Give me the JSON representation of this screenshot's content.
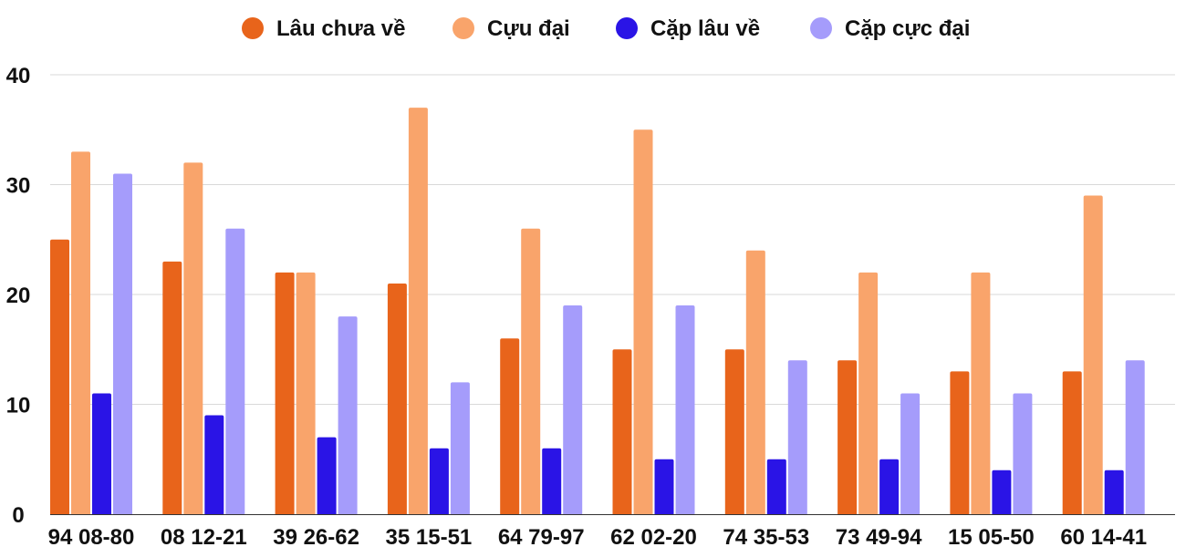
{
  "chart_data": {
    "type": "bar",
    "categories": [
      "94 08-80",
      "08 12-21",
      "39 26-62",
      "35 15-51",
      "64 79-97",
      "62 02-20",
      "74 35-53",
      "73 49-94",
      "15 05-50",
      "60 14-41"
    ],
    "series": [
      {
        "name": "Lâu chưa về",
        "color": "#e8641b",
        "values": [
          25,
          23,
          22,
          21,
          16,
          15,
          15,
          14,
          13,
          13
        ]
      },
      {
        "name": "Cựu đại",
        "color": "#f9a46b",
        "values": [
          33,
          32,
          22,
          37,
          26,
          35,
          24,
          22,
          22,
          29
        ]
      },
      {
        "name": "Cặp lâu về",
        "color": "#2a14e6",
        "values": [
          11,
          9,
          7,
          6,
          6,
          5,
          5,
          5,
          4,
          4
        ]
      },
      {
        "name": "Cặp cực đại",
        "color": "#a59cfb",
        "values": [
          31,
          26,
          18,
          12,
          19,
          19,
          14,
          11,
          11,
          14
        ]
      }
    ],
    "title": "",
    "xlabel": "",
    "ylabel": "",
    "ylim": [
      0,
      40
    ],
    "yticks": [
      0,
      10,
      20,
      30,
      40
    ],
    "grid": true,
    "legend": "top-center"
  }
}
